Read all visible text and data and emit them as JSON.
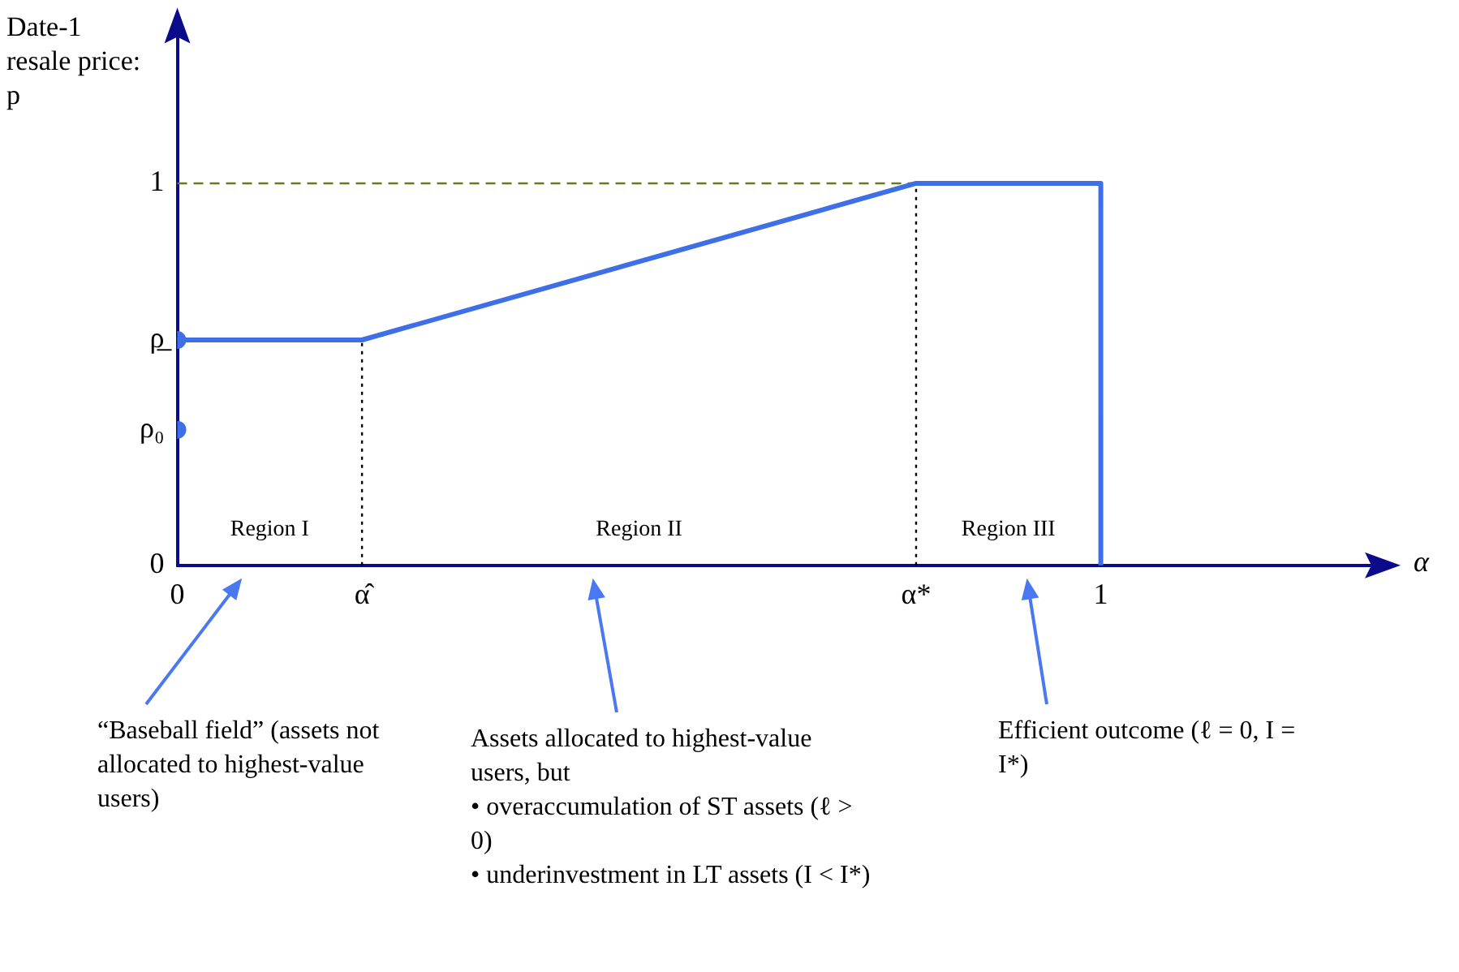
{
  "chart_data": {
    "type": "line",
    "ylabel": "Date-1 resale price: p",
    "xlabel": "α",
    "xlim": [
      0,
      1.3
    ],
    "ylim": [
      0,
      1.4
    ],
    "xticks": [
      {
        "value": 0,
        "label": "0"
      },
      {
        "value": 0.2,
        "label": "α̂"
      },
      {
        "value": 0.8,
        "label": "α*"
      },
      {
        "value": 1,
        "label": "1"
      }
    ],
    "yticks": [
      {
        "value": 0,
        "label": "0"
      },
      {
        "value": 0.355,
        "label": "ρ₀"
      },
      {
        "value": 0.59,
        "label": "ρ̲"
      },
      {
        "value": 1,
        "label": "1"
      }
    ],
    "series": [
      {
        "color": "#3f6fe6",
        "x": [
          0,
          0.2,
          0.8,
          1,
          1
        ],
        "values": [
          0.59,
          0.59,
          1,
          1,
          0
        ]
      },
      {
        "type": "scatter",
        "color": "#3f6fe6",
        "marker": "circle",
        "x": [
          0,
          0
        ],
        "values": [
          0.59,
          0.355
        ]
      }
    ],
    "ref_lines": [
      {
        "axis": "x",
        "value": 0.2,
        "color": "#000000",
        "line_style": "dotted"
      },
      {
        "axis": "x",
        "value": 0.8,
        "color": "#000000",
        "line_style": "dotted"
      },
      {
        "axis": "y",
        "value": 1,
        "color": "#6b7a1e",
        "line_style": "dashed"
      }
    ],
    "grid": false,
    "legend": false,
    "annotations": [
      "Region I",
      "Region II",
      "Region III",
      "“Baseball field” (assets not allocated to highest-value users)",
      "Assets allocated to highest-value users, but\n• overaccumulation of ST assets (ℓ > 0)\n• underinvestment in LT assets (I < I*)",
      "Efficient outcome (ℓ = 0, I = I*)"
    ]
  }
}
